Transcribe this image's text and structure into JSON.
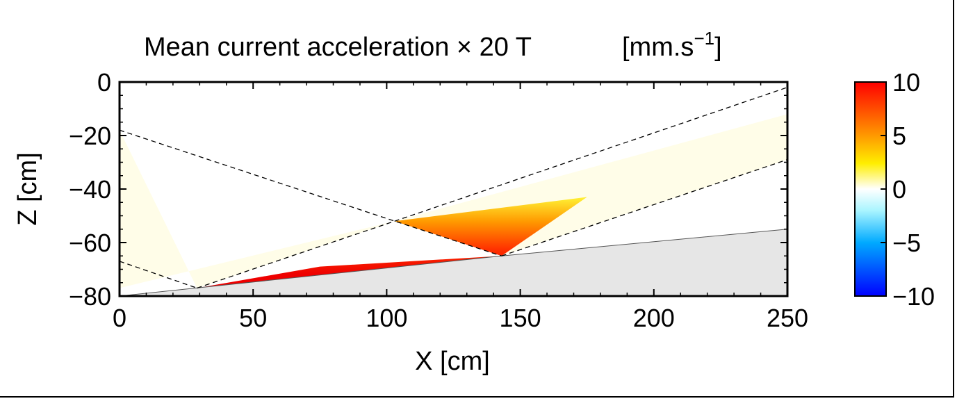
{
  "chart_data": {
    "type": "heatmap",
    "title": "Mean current acceleration × 20 T",
    "title_units": "[mm.s",
    "title_units_sup": "−1",
    "title_units_close": "]",
    "xlabel": "X [cm]",
    "ylabel": "Z [cm]",
    "xlim": [
      0,
      250
    ],
    "ylim": [
      -80,
      0
    ],
    "x_ticks": [
      "0",
      "50",
      "100",
      "150",
      "200",
      "250"
    ],
    "y_ticks": [
      "0",
      "−20",
      "−40",
      "−60",
      "−80"
    ],
    "colorbar": {
      "range": [
        -10,
        10
      ],
      "tick_labels": [
        "10",
        "5",
        "0",
        "−5",
        "−10"
      ],
      "tick_values": [
        10,
        5,
        0,
        -5,
        -10
      ],
      "colors": [
        "#0000ff",
        "#00aaff",
        "#ffffff",
        "#ffff00",
        "#ff0000"
      ]
    },
    "bed_line": {
      "x": [
        0,
        143,
        250
      ],
      "z": [
        -80,
        -65,
        -55
      ]
    },
    "dashed_lines": [
      {
        "x": [
          0,
          103,
          143
        ],
        "z": [
          -18,
          -52,
          -65
        ]
      },
      {
        "x": [
          0,
          29
        ],
        "z": [
          -67,
          -77
        ]
      },
      {
        "x": [
          29,
          103,
          250
        ],
        "z": [
          -77,
          -52,
          -2
        ]
      },
      {
        "x": [
          143,
          250
        ],
        "z": [
          -65,
          -29
        ]
      }
    ],
    "regions": [
      {
        "value": 0.5,
        "x": [
          0,
          0,
          103,
          29
        ],
        "z": [
          -18,
          -77,
          -52,
          -77
        ]
      },
      {
        "value": 0.6,
        "x": [
          103,
          250,
          250,
          143
        ],
        "z": [
          -52,
          -12,
          -29,
          -65
        ]
      },
      {
        "value": 9.5,
        "x": [
          29,
          75,
          143
        ],
        "z": [
          -77,
          -69,
          -65
        ]
      }
    ],
    "gradient": {
      "min": 0.5,
      "max": 10
    }
  }
}
